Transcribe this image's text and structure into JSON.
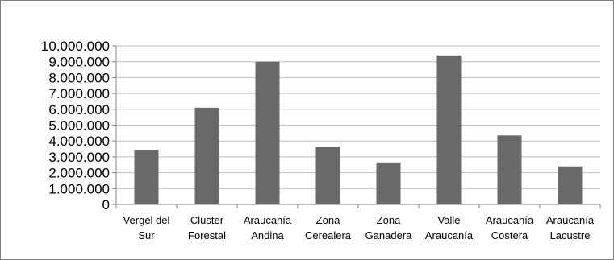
{
  "chart_data": {
    "type": "bar",
    "title": "",
    "xlabel": "",
    "ylabel": "",
    "categories": [
      [
        "Vergel del",
        "Sur"
      ],
      [
        "Cluster",
        "Forestal"
      ],
      [
        "Araucanía",
        "Andina"
      ],
      [
        "Zona",
        "Cerealera"
      ],
      [
        "Zona",
        "Ganadera"
      ],
      [
        "Valle",
        "Araucanía"
      ],
      [
        "Araucanía",
        "Costera"
      ],
      [
        "Araucanía",
        "Lacustre"
      ]
    ],
    "values": [
      3450000,
      6100000,
      9000000,
      3650000,
      2650000,
      9400000,
      4350000,
      2400000
    ],
    "ylim": [
      0,
      10000000
    ],
    "yticks": [
      "0",
      "1.000.000",
      "2.000.000",
      "3.000.000",
      "4.000.000",
      "5.000.000",
      "6.000.000",
      "7.000.000",
      "8.000.000",
      "9.000.000",
      "10.000.000"
    ],
    "grid": true,
    "legend": "none",
    "bar_color": "#696969",
    "grid_color": "#bfbfbf",
    "axis_color": "#868686"
  }
}
